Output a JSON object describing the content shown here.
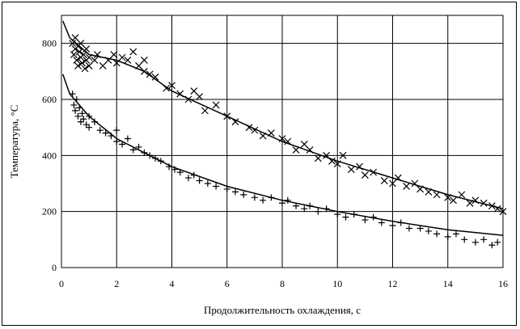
{
  "chart_data": {
    "type": "scatter",
    "title": "",
    "xlabel": "Продолжительность охлаждения, с",
    "ylabel": "Температура, °C",
    "xlim": [
      0,
      16
    ],
    "ylim": [
      0,
      900
    ],
    "xticks": [
      0,
      2,
      4,
      6,
      8,
      10,
      12,
      14,
      16
    ],
    "yticks": [
      0,
      200,
      400,
      600,
      800
    ],
    "grid": true,
    "legend": "none",
    "colors": {
      "markers": "#000000",
      "curves": "#000000",
      "grid": "#000000"
    },
    "series": [
      {
        "marker": "x",
        "points": [
          [
            0.4,
            800
          ],
          [
            0.45,
            760
          ],
          [
            0.5,
            820
          ],
          [
            0.5,
            780
          ],
          [
            0.55,
            740
          ],
          [
            0.6,
            790
          ],
          [
            0.6,
            720
          ],
          [
            0.65,
            770
          ],
          [
            0.7,
            750
          ],
          [
            0.7,
            800
          ],
          [
            0.75,
            730
          ],
          [
            0.8,
            760
          ],
          [
            0.85,
            710
          ],
          [
            0.9,
            740
          ],
          [
            0.9,
            780
          ],
          [
            1.0,
            720
          ],
          [
            1.0,
            750
          ],
          [
            1.2,
            740
          ],
          [
            1.3,
            760
          ],
          [
            1.5,
            720
          ],
          [
            1.7,
            740
          ],
          [
            1.9,
            760
          ],
          [
            2.0,
            730
          ],
          [
            2.2,
            750
          ],
          [
            2.4,
            740
          ],
          [
            2.6,
            770
          ],
          [
            2.8,
            720
          ],
          [
            3.0,
            740
          ],
          [
            3.0,
            700
          ],
          [
            3.2,
            690
          ],
          [
            3.4,
            680
          ],
          [
            3.8,
            640
          ],
          [
            4.0,
            650
          ],
          [
            4.3,
            620
          ],
          [
            4.6,
            600
          ],
          [
            4.8,
            630
          ],
          [
            5.0,
            610
          ],
          [
            5.2,
            560
          ],
          [
            5.6,
            580
          ],
          [
            6.0,
            540
          ],
          [
            6.3,
            520
          ],
          [
            6.8,
            500
          ],
          [
            7.0,
            490
          ],
          [
            7.3,
            470
          ],
          [
            7.6,
            480
          ],
          [
            8.0,
            460
          ],
          [
            8.2,
            450
          ],
          [
            8.5,
            420
          ],
          [
            8.8,
            440
          ],
          [
            9.0,
            420
          ],
          [
            9.3,
            390
          ],
          [
            9.6,
            400
          ],
          [
            9.8,
            380
          ],
          [
            10.0,
            370
          ],
          [
            10.2,
            400
          ],
          [
            10.5,
            350
          ],
          [
            10.8,
            360
          ],
          [
            11.0,
            330
          ],
          [
            11.3,
            340
          ],
          [
            11.7,
            310
          ],
          [
            12.0,
            300
          ],
          [
            12.2,
            320
          ],
          [
            12.5,
            290
          ],
          [
            12.8,
            300
          ],
          [
            13.0,
            280
          ],
          [
            13.3,
            270
          ],
          [
            13.6,
            260
          ],
          [
            14.0,
            250
          ],
          [
            14.2,
            240
          ],
          [
            14.5,
            260
          ],
          [
            14.8,
            230
          ],
          [
            15.0,
            240
          ],
          [
            15.3,
            230
          ],
          [
            15.6,
            220
          ],
          [
            15.8,
            210
          ],
          [
            16.0,
            200
          ]
        ]
      },
      {
        "marker": "+",
        "points": [
          [
            0.4,
            620
          ],
          [
            0.45,
            580
          ],
          [
            0.5,
            560
          ],
          [
            0.55,
            600
          ],
          [
            0.6,
            540
          ],
          [
            0.65,
            570
          ],
          [
            0.7,
            520
          ],
          [
            0.75,
            550
          ],
          [
            0.8,
            530
          ],
          [
            0.9,
            510
          ],
          [
            1.0,
            540
          ],
          [
            1.0,
            500
          ],
          [
            1.2,
            520
          ],
          [
            1.4,
            490
          ],
          [
            1.6,
            480
          ],
          [
            1.8,
            470
          ],
          [
            2.0,
            450
          ],
          [
            2.0,
            490
          ],
          [
            2.2,
            440
          ],
          [
            2.4,
            460
          ],
          [
            2.6,
            420
          ],
          [
            2.8,
            430
          ],
          [
            3.0,
            410
          ],
          [
            3.2,
            400
          ],
          [
            3.4,
            390
          ],
          [
            3.6,
            380
          ],
          [
            3.9,
            360
          ],
          [
            4.1,
            350
          ],
          [
            4.3,
            340
          ],
          [
            4.6,
            320
          ],
          [
            4.8,
            330
          ],
          [
            5.0,
            310
          ],
          [
            5.3,
            300
          ],
          [
            5.6,
            290
          ],
          [
            6.0,
            280
          ],
          [
            6.3,
            270
          ],
          [
            6.6,
            260
          ],
          [
            7.0,
            250
          ],
          [
            7.3,
            240
          ],
          [
            7.6,
            250
          ],
          [
            8.0,
            230
          ],
          [
            8.2,
            240
          ],
          [
            8.5,
            220
          ],
          [
            8.8,
            210
          ],
          [
            9.0,
            220
          ],
          [
            9.3,
            200
          ],
          [
            9.6,
            210
          ],
          [
            10.0,
            190
          ],
          [
            10.3,
            180
          ],
          [
            10.6,
            190
          ],
          [
            11.0,
            170
          ],
          [
            11.3,
            180
          ],
          [
            11.6,
            160
          ],
          [
            12.0,
            150
          ],
          [
            12.3,
            160
          ],
          [
            12.6,
            140
          ],
          [
            13.0,
            140
          ],
          [
            13.3,
            130
          ],
          [
            13.6,
            120
          ],
          [
            14.0,
            110
          ],
          [
            14.3,
            120
          ],
          [
            14.6,
            100
          ],
          [
            15.0,
            90
          ],
          [
            15.3,
            100
          ],
          [
            15.6,
            80
          ],
          [
            15.8,
            90
          ]
        ]
      }
    ],
    "fit_curves": [
      {
        "points": [
          [
            0.05,
            880
          ],
          [
            0.3,
            820
          ],
          [
            1,
            760
          ],
          [
            2,
            740
          ],
          [
            3,
            700
          ],
          [
            4,
            630
          ],
          [
            6,
            540
          ],
          [
            8,
            450
          ],
          [
            10,
            380
          ],
          [
            12,
            320
          ],
          [
            14,
            260
          ],
          [
            16,
            210
          ]
        ]
      },
      {
        "points": [
          [
            0.05,
            690
          ],
          [
            0.3,
            620
          ],
          [
            1,
            540
          ],
          [
            2,
            460
          ],
          [
            3,
            410
          ],
          [
            4,
            360
          ],
          [
            6,
            290
          ],
          [
            8,
            240
          ],
          [
            10,
            200
          ],
          [
            12,
            165
          ],
          [
            14,
            135
          ],
          [
            16,
            115
          ]
        ]
      }
    ]
  }
}
